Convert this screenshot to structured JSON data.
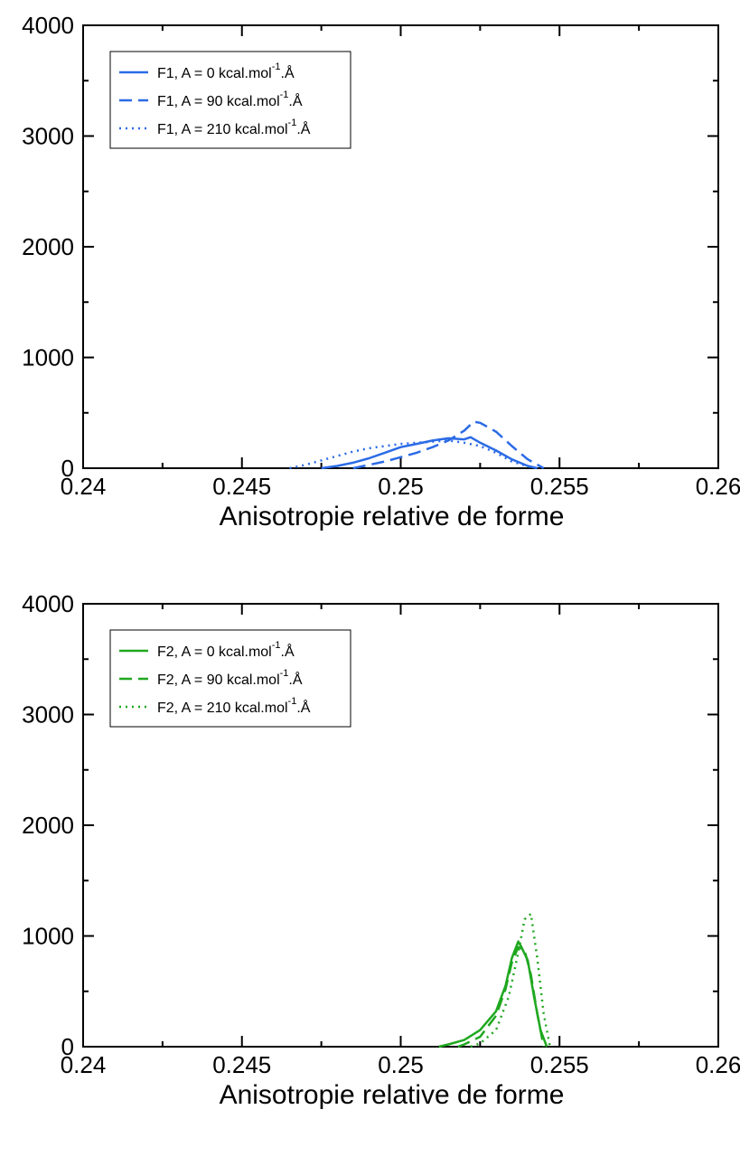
{
  "chart_data": [
    {
      "type": "line",
      "xlabel": "Anisotropie relative de forme",
      "ylabel": "",
      "xlim": [
        0.24,
        0.26
      ],
      "ylim": [
        0,
        4000
      ],
      "x_ticks": [
        "0.24",
        "0.245",
        "0.25",
        "0.255",
        "0.26"
      ],
      "y_ticks": [
        "0",
        "1000",
        "2000",
        "3000",
        "4000"
      ],
      "color": "#2b6be6",
      "legend_position": "top-left",
      "legend": [
        {
          "prefix": "F1, A = 0 kcal.mol",
          "sup": "-1",
          "suffix": ".Å",
          "style": "solid"
        },
        {
          "prefix": "F1, A = 90 kcal.mol",
          "sup": "-1",
          "suffix": ".Å",
          "style": "dashed"
        },
        {
          "prefix": "F1, A = 210 kcal.mol",
          "sup": "-1",
          "suffix": ".Å",
          "style": "dotted"
        }
      ],
      "series": [
        {
          "name": "F1, A = 0 kcal.mol-1.Å",
          "style": "solid",
          "x": [
            0.2475,
            0.248,
            0.2485,
            0.249,
            0.2495,
            0.25,
            0.2505,
            0.251,
            0.2515,
            0.252,
            0.2522,
            0.2525,
            0.253,
            0.2535,
            0.254,
            0.2543
          ],
          "y": [
            0,
            20,
            50,
            90,
            140,
            190,
            220,
            250,
            270,
            260,
            280,
            230,
            160,
            80,
            20,
            0
          ]
        },
        {
          "name": "F1, A = 90 kcal.mol-1.Å",
          "style": "dashed",
          "x": [
            0.2485,
            0.249,
            0.2495,
            0.25,
            0.2505,
            0.251,
            0.2515,
            0.252,
            0.2523,
            0.2525,
            0.253,
            0.2535,
            0.254,
            0.2545
          ],
          "y": [
            0,
            30,
            60,
            100,
            140,
            190,
            250,
            340,
            420,
            410,
            330,
            200,
            80,
            0
          ]
        },
        {
          "name": "F1, A = 210 kcal.mol-1.Å",
          "style": "dotted",
          "x": [
            0.2465,
            0.247,
            0.2475,
            0.248,
            0.2485,
            0.249,
            0.2495,
            0.25,
            0.2505,
            0.251,
            0.2515,
            0.252,
            0.2525,
            0.253,
            0.2535,
            0.2542
          ],
          "y": [
            0,
            30,
            70,
            110,
            150,
            180,
            200,
            220,
            230,
            240,
            250,
            230,
            200,
            140,
            60,
            0
          ]
        }
      ]
    },
    {
      "type": "line",
      "xlabel": "Anisotropie relative de forme",
      "ylabel": "",
      "xlim": [
        0.24,
        0.26
      ],
      "ylim": [
        0,
        4000
      ],
      "x_ticks": [
        "0.24",
        "0.245",
        "0.25",
        "0.255",
        "0.26"
      ],
      "y_ticks": [
        "0",
        "1000",
        "2000",
        "3000",
        "4000"
      ],
      "color": "#1fa81f",
      "legend_position": "top-left",
      "legend": [
        {
          "prefix": "F2, A = 0 kcal.mol",
          "sup": "-1",
          "suffix": ".Å",
          "style": "solid"
        },
        {
          "prefix": "F2, A = 90 kcal.mol",
          "sup": "-1",
          "suffix": ".Å",
          "style": "dashed"
        },
        {
          "prefix": "F2, A = 210 kcal.mol",
          "sup": "-1",
          "suffix": ".Å",
          "style": "dotted"
        }
      ],
      "series": [
        {
          "name": "F2, A = 0 kcal.mol-1.Å",
          "style": "solid",
          "x": [
            0.2512,
            0.2515,
            0.252,
            0.2525,
            0.253,
            0.2533,
            0.2535,
            0.2537,
            0.2538,
            0.254,
            0.2542,
            0.2544,
            0.2546
          ],
          "y": [
            0,
            20,
            60,
            150,
            320,
            550,
            800,
            950,
            900,
            780,
            450,
            150,
            0
          ]
        },
        {
          "name": "F2, A = 90 kcal.mol-1.Å",
          "style": "dashed",
          "x": [
            0.2518,
            0.252,
            0.2525,
            0.253,
            0.2533,
            0.2535,
            0.2537,
            0.2539,
            0.2541,
            0.2543,
            0.2545
          ],
          "y": [
            0,
            20,
            90,
            280,
            520,
            760,
            900,
            870,
            650,
            300,
            0
          ]
        },
        {
          "name": "F2, A = 210 kcal.mol-1.Å",
          "style": "dotted",
          "x": [
            0.2522,
            0.2525,
            0.253,
            0.2534,
            0.2537,
            0.2539,
            0.2541,
            0.2543,
            0.2545,
            0.2547
          ],
          "y": [
            0,
            30,
            150,
            450,
            850,
            1150,
            1200,
            800,
            300,
            0
          ]
        }
      ]
    }
  ]
}
